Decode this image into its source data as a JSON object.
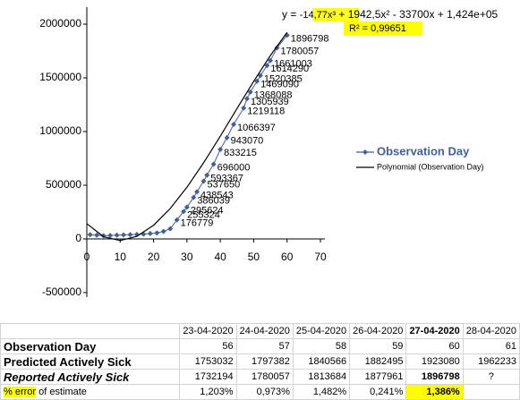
{
  "chart_data": {
    "type": "line",
    "equation_parts": [
      "y = ",
      "-14,77x³",
      " + 1942,5x² - 33700x + 1,424e+05"
    ],
    "r_squared_label": "R² = 0,99651",
    "xlim": [
      0,
      70
    ],
    "xticks": [
      0,
      10,
      20,
      30,
      40,
      50,
      60,
      70
    ],
    "ylim": [
      -500000,
      2000000
    ],
    "yticks": [
      -500000,
      0,
      500000,
      1000000,
      1500000,
      2000000
    ],
    "legend": "right",
    "series": [
      {
        "name": "Observation Day",
        "color": "#41609a",
        "x": [
          1,
          3,
          5,
          7,
          9,
          11,
          13,
          15,
          17,
          19,
          21,
          23,
          25,
          27,
          29,
          30,
          32,
          33,
          35,
          36,
          38,
          40,
          42,
          44,
          47,
          48,
          49,
          51,
          52,
          54,
          55,
          57,
          60
        ],
        "values": [
          40000,
          35000,
          30000,
          32000,
          35000,
          38000,
          40000,
          42000,
          45000,
          50000,
          55000,
          70000,
          95000,
          176779,
          255324,
          295624,
          386039,
          438543,
          537650,
          593367,
          696000,
          833215,
          943070,
          1066397,
          1219118,
          1305939,
          1368088,
          1469090,
          1520385,
          1614290,
          1661003,
          1780057,
          1896798
        ]
      },
      {
        "name": "Polynomial (Observation Day)",
        "color": "#000000",
        "x": [
          0,
          5,
          10,
          15,
          20,
          25,
          30,
          35,
          40,
          45,
          50,
          55,
          60
        ],
        "values": [
          142400,
          20616,
          -15120,
          24114,
          127240,
          283181,
          480860,
          709199,
          957120,
          1213565,
          1467400,
          1707604,
          1923080
        ]
      }
    ]
  },
  "table": {
    "columns": [
      "23-04-2020",
      "24-04-2020",
      "25-04-2020",
      "26-04-2020",
      "27-04-2020",
      "28-04-2020"
    ],
    "rows": [
      {
        "label": "Observation Day",
        "cells": [
          56,
          57,
          58,
          59,
          60,
          61
        ]
      },
      {
        "label": "Predicted Actively Sick",
        "cells": [
          1753032,
          1797382,
          1840566,
          1882495,
          1923080,
          1962233
        ]
      },
      {
        "label": "Reported Actively Sick",
        "cells": [
          1732194,
          1780057,
          1813684,
          1877961,
          1896798,
          "?"
        ]
      },
      {
        "label_parts": [
          "% error",
          " of estimate"
        ],
        "cells": [
          "1,203%",
          "0,973%",
          "1,482%",
          "0,241%",
          "1,386%",
          null
        ]
      }
    ]
  }
}
